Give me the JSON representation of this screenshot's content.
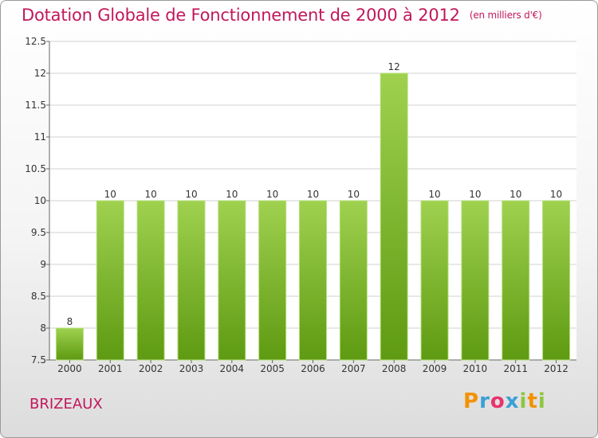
{
  "header": {
    "title": "Dotation Globale de Fonctionnement de 2000 à 2012",
    "unit": "(en milliers d'€)"
  },
  "footer": {
    "commune": "BRIZEAUX",
    "logo": "Proxiti",
    "logo_colors": [
      "#f39200",
      "#3aa0d5",
      "#e8336d",
      "#3aa0d5",
      "#8dc63f",
      "#f39200",
      "#8dc63f"
    ]
  },
  "chart_data": {
    "type": "bar",
    "title": "Dotation Globale de Fonctionnement de 2000 à 2012",
    "xlabel": "",
    "ylabel": "",
    "categories": [
      "2000",
      "2001",
      "2002",
      "2003",
      "2004",
      "2005",
      "2006",
      "2007",
      "2008",
      "2009",
      "2010",
      "2011",
      "2012"
    ],
    "values": [
      8,
      10,
      10,
      10,
      10,
      10,
      10,
      10,
      12,
      10,
      10,
      10,
      10
    ],
    "data_labels": [
      "8",
      "10",
      "10",
      "10",
      "10",
      "10",
      "10",
      "10",
      "12",
      "10",
      "10",
      "10",
      "10"
    ],
    "ylim": [
      7.5,
      12.5
    ],
    "yticks": [
      "7.5",
      "8",
      "8.5",
      "9",
      "9.5",
      "10",
      "10.5",
      "11",
      "11.5",
      "12",
      "12.5"
    ],
    "grid": true,
    "colors": {
      "bar_top": "#9fd14f",
      "bar_bottom": "#5e9a12",
      "grid": "#d0d0d0",
      "text": "#333333"
    }
  }
}
